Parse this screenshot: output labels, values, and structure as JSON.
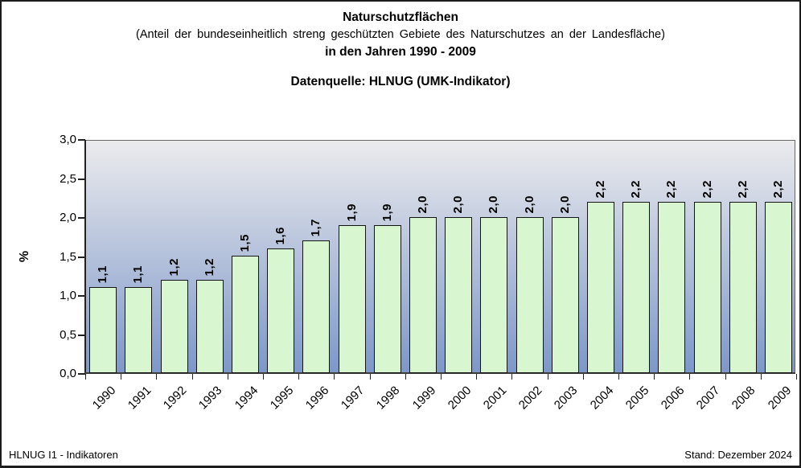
{
  "header": {
    "title": "Naturschutzflächen",
    "subtitle": "(Anteil der bundeseinheitlich streng geschützten Gebiete des Naturschutzes an der Landesfläche)",
    "period": "in den Jahren 1990 - 2009",
    "datasource": "Datenquelle: HLNUG (UMK-Indikator)"
  },
  "chart_data": {
    "type": "bar",
    "title": "Naturschutzflächen (Anteil der bundeseinheitlich streng geschützten Gebiete des Naturschutzes an der Landesfläche) in den Jahren 1990 - 2009",
    "categories": [
      "1990",
      "1991",
      "1992",
      "1993",
      "1994",
      "1995",
      "1996",
      "1997",
      "1998",
      "1999",
      "2000",
      "2001",
      "2002",
      "2003",
      "2004",
      "2005",
      "2006",
      "2007",
      "2008",
      "2009"
    ],
    "values": [
      1.1,
      1.1,
      1.2,
      1.2,
      1.5,
      1.6,
      1.7,
      1.9,
      1.9,
      2.0,
      2.0,
      2.0,
      2.0,
      2.0,
      2.2,
      2.2,
      2.2,
      2.2,
      2.2,
      2.2
    ],
    "value_labels": [
      "1,1",
      "1,1",
      "1,2",
      "1,2",
      "1,5",
      "1,6",
      "1,7",
      "1,9",
      "1,9",
      "2,0",
      "2,0",
      "2,0",
      "2,0",
      "2,0",
      "2,2",
      "2,2",
      "2,2",
      "2,2",
      "2,2",
      "2,2"
    ],
    "xlabel": "",
    "ylabel": "%",
    "ylim": [
      0,
      3
    ],
    "ytick_values": [
      0.0,
      0.5,
      1.0,
      1.5,
      2.0,
      2.5,
      3.0
    ],
    "ytick_labels": [
      "0,0",
      "0,5",
      "1,0",
      "1,5",
      "2,0",
      "2,5",
      "3,0"
    ],
    "grid": false,
    "legend": false,
    "colors": {
      "bar_fill": "#d8f6d0",
      "bar_border": "#141414",
      "plot_bg_top": "#ebebed",
      "plot_bg_bottom": "#7d97c9",
      "axis": "#222222"
    }
  },
  "footer": {
    "left": "HLNUG I1 - Indikatoren",
    "right": "Stand: Dezember 2024"
  }
}
